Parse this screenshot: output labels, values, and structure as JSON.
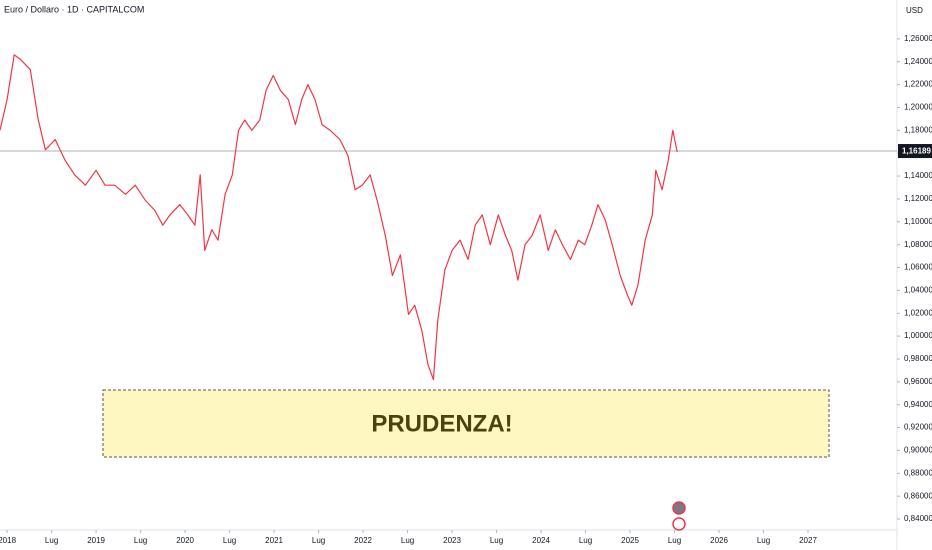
{
  "chart_data": {
    "type": "line",
    "title": "Euro / Dollaro · 1D · CAPITALCOM",
    "currency": "USD",
    "color": "#f23645",
    "grid": false,
    "x": [
      2017.92,
      2018.0,
      2018.08,
      2018.15,
      2018.26,
      2018.35,
      2018.43,
      2018.54,
      2018.65,
      2018.76,
      2018.88,
      2019.0,
      2019.1,
      2019.21,
      2019.33,
      2019.44,
      2019.55,
      2019.66,
      2019.75,
      2019.83,
      2019.94,
      2020.03,
      2020.11,
      2020.17,
      2020.22,
      2020.3,
      2020.37,
      2020.45,
      2020.53,
      2020.6,
      2020.67,
      2020.75,
      2020.84,
      2020.91,
      2020.99,
      2021.07,
      2021.16,
      2021.24,
      2021.31,
      2021.38,
      2021.46,
      2021.54,
      2021.63,
      2021.74,
      2021.83,
      2021.91,
      2021.99,
      2022.08,
      2022.17,
      2022.25,
      2022.33,
      2022.42,
      2022.51,
      2022.58,
      2022.66,
      2022.73,
      2022.79,
      2022.84,
      2022.92,
      2023.0,
      2023.09,
      2023.18,
      2023.26,
      2023.34,
      2023.43,
      2023.52,
      2023.6,
      2023.67,
      2023.74,
      2023.82,
      2023.9,
      2023.99,
      2024.08,
      2024.16,
      2024.24,
      2024.33,
      2024.42,
      2024.49,
      2024.57,
      2024.64,
      2024.72,
      2024.8,
      2024.89,
      2024.97,
      2025.02,
      2025.09,
      2025.17,
      2025.25,
      2025.29,
      2025.36,
      2025.43,
      2025.48,
      2025.53
    ],
    "values": [
      1.18,
      1.207,
      1.246,
      1.242,
      1.233,
      1.189,
      1.163,
      1.172,
      1.154,
      1.141,
      1.132,
      1.145,
      1.132,
      1.132,
      1.124,
      1.132,
      1.119,
      1.11,
      1.097,
      1.106,
      1.115,
      1.106,
      1.097,
      1.141,
      1.075,
      1.093,
      1.084,
      1.124,
      1.141,
      1.18,
      1.189,
      1.18,
      1.189,
      1.215,
      1.228,
      1.215,
      1.207,
      1.185,
      1.207,
      1.22,
      1.207,
      1.185,
      1.18,
      1.172,
      1.158,
      1.128,
      1.132,
      1.141,
      1.115,
      1.088,
      1.053,
      1.071,
      1.019,
      1.027,
      1.005,
      0.975,
      0.962,
      1.014,
      1.058,
      1.075,
      1.084,
      1.067,
      1.097,
      1.106,
      1.08,
      1.106,
      1.088,
      1.075,
      1.049,
      1.08,
      1.088,
      1.106,
      1.075,
      1.093,
      1.08,
      1.067,
      1.084,
      1.08,
      1.097,
      1.115,
      1.102,
      1.08,
      1.053,
      1.036,
      1.027,
      1.045,
      1.084,
      1.106,
      1.145,
      1.128,
      1.154,
      1.18,
      1.161
    ],
    "xlim": [
      2017.92,
      2028.0
    ],
    "ylim": [
      0.8304,
      1.294
    ],
    "xticks": [
      2018,
      {
        "value": 2018.5,
        "label": "Lug"
      },
      2019,
      {
        "value": 2019.5,
        "label": "Lug"
      },
      2020,
      {
        "value": 2020.5,
        "label": "Lug"
      },
      2021,
      {
        "value": 2021.5,
        "label": "Lug"
      },
      2022,
      {
        "value": 2022.5,
        "label": "Lug"
      },
      2023,
      {
        "value": 2023.5,
        "label": "Lug"
      },
      2024,
      {
        "value": 2024.5,
        "label": "Lug"
      },
      2025,
      {
        "value": 2025.5,
        "label": "Lug"
      },
      2026,
      {
        "value": 2026.5,
        "label": "Lug"
      },
      2027
    ],
    "yticks": [
      {
        "value": 0.84,
        "label": "0,84000"
      },
      {
        "value": 0.86,
        "label": "0,86000"
      },
      {
        "value": 0.88,
        "label": "0,88000"
      },
      {
        "value": 0.9,
        "label": "0,90000"
      },
      {
        "value": 0.92,
        "label": "0,92000"
      },
      {
        "value": 0.94,
        "label": "0,94000"
      },
      {
        "value": 0.96,
        "label": "0,96000"
      },
      {
        "value": 0.98,
        "label": "0,98000"
      },
      {
        "value": 1.0,
        "label": "1,00000"
      },
      {
        "value": 1.02,
        "label": "1,02000"
      },
      {
        "value": 1.04,
        "label": "1,04000"
      },
      {
        "value": 1.06,
        "label": "1,06000"
      },
      {
        "value": 1.08,
        "label": "1,08000"
      },
      {
        "value": 1.1,
        "label": "1,10000"
      },
      {
        "value": 1.12,
        "label": "1,12000"
      },
      {
        "value": 1.14,
        "label": "1,14000"
      },
      {
        "value": 1.16,
        "label": "1,16000"
      },
      {
        "value": 1.18,
        "label": "1,18000"
      },
      {
        "value": 1.2,
        "label": "1,20000"
      },
      {
        "value": 1.22,
        "label": "1,22000"
      },
      {
        "value": 1.24,
        "label": "1,24000"
      },
      {
        "value": 1.26,
        "label": "1,26000"
      }
    ],
    "last_price": {
      "value": 1.16189,
      "label": "1,16189"
    },
    "annotation": "PRUDENZA!"
  }
}
